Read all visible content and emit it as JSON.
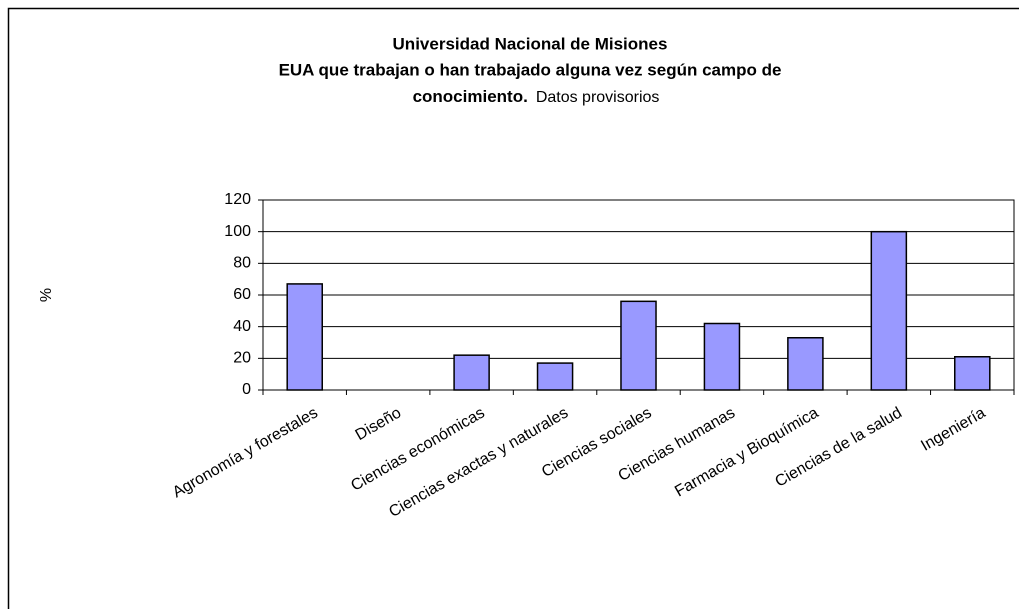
{
  "chart_data": {
    "type": "bar",
    "title": [
      "Universidad Nacional de Misiones",
      "EUA que trabajan o han trabajado alguna vez según campo de",
      "conocimiento."
    ],
    "subtitle": "Datos provisorios",
    "y_label": "%",
    "categories": [
      "Agronomía y forestales",
      "Diseño",
      "Ciencias económicas",
      "Ciencias exactas y naturales",
      "Ciencias sociales",
      "Ciencias humanas",
      "Farmacia y Bioquímica",
      "Ciencias de la salud",
      "Ingeniería"
    ],
    "values": [
      67,
      0,
      22,
      17,
      56,
      42,
      33,
      100,
      21
    ],
    "color": "#9999ff",
    "ylim": [
      0,
      120
    ],
    "yticks": [
      0,
      20,
      40,
      60,
      80,
      100,
      120
    ],
    "grid": true
  }
}
